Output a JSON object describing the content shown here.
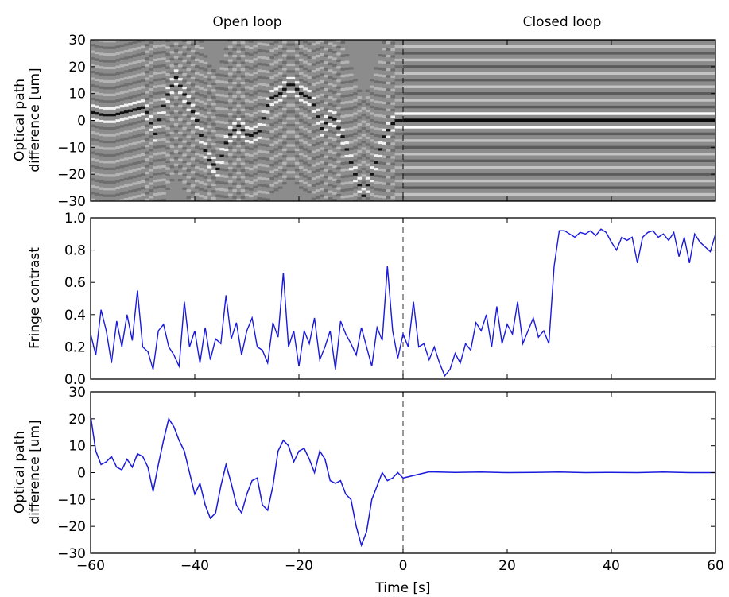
{
  "colors": {
    "line": "#1a1adc",
    "axis": "#000000",
    "divider": "#555555",
    "image_background": "#8c8c8c"
  },
  "chart_data": [
    {
      "type": "heatmap",
      "panel": "top",
      "column_titles": [
        "Open loop",
        "Closed loop"
      ],
      "ylabel_lines": [
        "Optical path",
        "difference [um]"
      ],
      "xlim": [
        -60,
        60
      ],
      "ylim": [
        -30,
        30
      ],
      "yticks": [
        30,
        20,
        10,
        0,
        -10,
        -20,
        -30
      ],
      "xticks_labeled": false,
      "vline_x": 0,
      "colormap": "grayscale",
      "fringe_spacing_um": 2.5,
      "open_loop_fringe_center_x": [
        -60,
        -58,
        -56,
        -54,
        -52,
        -50,
        -48,
        -46,
        -44,
        -42,
        -40,
        -38,
        -36,
        -34,
        -32,
        -30,
        -28,
        -26,
        -24,
        -22,
        -20,
        -18,
        -16,
        -14,
        -12,
        -10,
        -8,
        -6,
        -4,
        -2,
        0
      ],
      "open_loop_fringe_center_y": [
        3,
        2,
        2,
        3,
        4,
        5,
        -5,
        8,
        16,
        8,
        0,
        -14,
        -18,
        -6,
        -2,
        -6,
        -4,
        8,
        10,
        14,
        10,
        8,
        -3,
        2,
        -6,
        -18,
        -28,
        -18,
        -6,
        0,
        0
      ],
      "closed_loop_fringe_center_y": 0
    },
    {
      "type": "line",
      "panel": "middle",
      "ylabel": "Fringe contrast",
      "xlim": [
        -60,
        60
      ],
      "ylim": [
        0.0,
        1.0
      ],
      "yticks": [
        "1.0",
        "0.8",
        "0.6",
        "0.4",
        "0.2",
        "0.0"
      ],
      "xticks_labeled": false,
      "vline_x": 0,
      "series": [
        {
          "x": [
            -60,
            -59,
            -58,
            -57,
            -56,
            -55,
            -54,
            -53,
            -52,
            -51,
            -50,
            -49,
            -48,
            -47,
            -46,
            -45,
            -44,
            -43,
            -42,
            -41,
            -40,
            -39,
            -38,
            -37,
            -36,
            -35,
            -34,
            -33,
            -32,
            -31,
            -30,
            -29,
            -28,
            -27,
            -26,
            -25,
            -24,
            -23,
            -22,
            -21,
            -20,
            -19,
            -18,
            -17,
            -16,
            -15,
            -14,
            -13,
            -12,
            -11,
            -10,
            -9,
            -8,
            -7,
            -6,
            -5,
            -4,
            -3,
            -2,
            -1,
            0,
            1,
            2,
            3,
            4,
            5,
            6,
            7,
            8,
            9,
            10,
            11,
            12,
            13,
            14,
            15,
            16,
            17,
            18,
            19,
            20,
            21,
            22,
            23,
            24,
            25,
            26,
            27,
            28,
            29,
            30,
            31,
            32,
            33,
            34,
            35,
            36,
            37,
            38,
            39,
            40,
            41,
            42,
            43,
            44,
            45,
            46,
            47,
            48,
            49,
            50,
            51,
            52,
            53,
            54,
            55,
            56,
            57,
            58,
            59,
            60
          ],
          "y": [
            0.28,
            0.15,
            0.43,
            0.3,
            0.1,
            0.36,
            0.2,
            0.4,
            0.24,
            0.55,
            0.2,
            0.17,
            0.06,
            0.3,
            0.34,
            0.2,
            0.15,
            0.08,
            0.48,
            0.2,
            0.3,
            0.1,
            0.32,
            0.12,
            0.25,
            0.22,
            0.52,
            0.25,
            0.35,
            0.15,
            0.3,
            0.38,
            0.2,
            0.18,
            0.1,
            0.35,
            0.26,
            0.66,
            0.2,
            0.3,
            0.08,
            0.3,
            0.22,
            0.38,
            0.12,
            0.2,
            0.3,
            0.06,
            0.36,
            0.28,
            0.22,
            0.15,
            0.32,
            0.2,
            0.08,
            0.32,
            0.24,
            0.7,
            0.3,
            0.13,
            0.28,
            0.2,
            0.48,
            0.2,
            0.22,
            0.12,
            0.2,
            0.1,
            0.02,
            0.06,
            0.16,
            0.1,
            0.22,
            0.18,
            0.35,
            0.3,
            0.4,
            0.2,
            0.45,
            0.22,
            0.34,
            0.28,
            0.48,
            0.22,
            0.3,
            0.38,
            0.26,
            0.3,
            0.22,
            0.7,
            0.92,
            0.92,
            0.9,
            0.88,
            0.91,
            0.9,
            0.92,
            0.89,
            0.93,
            0.91,
            0.85,
            0.8,
            0.88,
            0.86,
            0.88,
            0.72,
            0.88,
            0.91,
            0.92,
            0.88,
            0.9,
            0.86,
            0.91,
            0.76,
            0.88,
            0.72,
            0.9,
            0.85,
            0.82,
            0.79,
            0.9
          ]
        }
      ]
    },
    {
      "type": "line",
      "panel": "bottom",
      "ylabel_lines": [
        "Optical path",
        "difference [um]"
      ],
      "xlabel": "Time [s]",
      "xlim": [
        -60,
        60
      ],
      "ylim": [
        -30,
        30
      ],
      "yticks": [
        30,
        20,
        10,
        0,
        -10,
        -20,
        -30
      ],
      "xticks": [
        "−60",
        "−40",
        "−20",
        "0",
        "20",
        "40",
        "60"
      ],
      "vline_x": 0,
      "series": [
        {
          "x": [
            -60,
            -59,
            -58,
            -57,
            -56,
            -55,
            -54,
            -53,
            -52,
            -51,
            -50,
            -49,
            -48,
            -47,
            -46,
            -45,
            -44,
            -43,
            -42,
            -41,
            -40,
            -39,
            -38,
            -37,
            -36,
            -35,
            -34,
            -33,
            -32,
            -31,
            -30,
            -29,
            -28,
            -27,
            -26,
            -25,
            -24,
            -23,
            -22,
            -21,
            -20,
            -19,
            -18,
            -17,
            -16,
            -15,
            -14,
            -13,
            -12,
            -11,
            -10,
            -9,
            -8,
            -7,
            -6,
            -5,
            -4,
            -3,
            -2,
            -1,
            0,
            5,
            10,
            15,
            20,
            25,
            30,
            35,
            40,
            45,
            50,
            55,
            60
          ],
          "y": [
            21,
            8,
            3,
            4,
            6,
            2,
            1,
            5,
            2,
            7,
            6,
            2,
            -7,
            3,
            12,
            20,
            17,
            12,
            8,
            0,
            -8,
            -4,
            -12,
            -17,
            -15,
            -5,
            3,
            -4,
            -12,
            -15,
            -8,
            -3,
            -2,
            -12,
            -14,
            -5,
            8,
            12,
            10,
            4,
            8,
            9,
            5,
            0,
            8,
            5,
            -3,
            -4,
            -3,
            -8,
            -10,
            -20,
            -27,
            -22,
            -10,
            -5,
            0,
            -3,
            -2,
            0,
            -2,
            0.3,
            0.1,
            0.2,
            0.0,
            0.1,
            0.2,
            0.0,
            0.1,
            0.0,
            0.2,
            0.0,
            0.0
          ]
        }
      ]
    }
  ]
}
